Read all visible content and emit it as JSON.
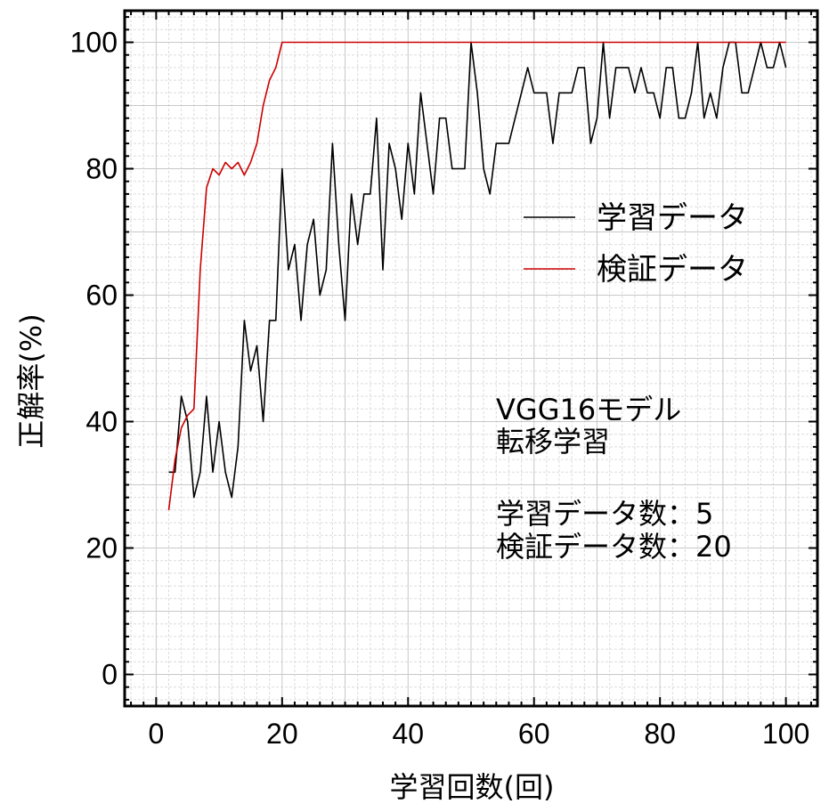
{
  "chart_data": {
    "type": "line",
    "xlabel": "学習回数(回)",
    "ylabel": "正解率(%)",
    "xlim": [
      -5,
      105
    ],
    "ylim": [
      -5,
      105
    ],
    "x_ticks": [
      0,
      20,
      40,
      60,
      80,
      100
    ],
    "y_ticks": [
      0,
      20,
      40,
      60,
      80,
      100
    ],
    "grid": true,
    "legend_position": "upper-right",
    "series": [
      {
        "name": "学習データ",
        "color": "#000000",
        "x": [
          2,
          3,
          4,
          5,
          6,
          7,
          8,
          9,
          10,
          11,
          12,
          13,
          14,
          15,
          16,
          17,
          18,
          19,
          20,
          21,
          22,
          23,
          24,
          25,
          26,
          27,
          28,
          29,
          30,
          31,
          32,
          33,
          34,
          35,
          36,
          37,
          38,
          39,
          40,
          41,
          42,
          43,
          44,
          45,
          46,
          47,
          48,
          49,
          50,
          51,
          52,
          53,
          54,
          55,
          56,
          57,
          58,
          59,
          60,
          61,
          62,
          63,
          64,
          65,
          66,
          67,
          68,
          69,
          70,
          71,
          72,
          73,
          74,
          75,
          76,
          77,
          78,
          79,
          80,
          81,
          82,
          83,
          84,
          85,
          86,
          87,
          88,
          89,
          90,
          91,
          92,
          93,
          94,
          95,
          96,
          97,
          98,
          99,
          100
        ],
        "values": [
          32,
          32,
          44,
          40,
          28,
          32,
          44,
          32,
          40,
          32,
          28,
          36,
          56,
          48,
          52,
          40,
          56,
          56,
          80,
          64,
          68,
          56,
          68,
          72,
          60,
          64,
          84,
          68,
          56,
          76,
          68,
          76,
          76,
          88,
          64,
          84,
          80,
          72,
          84,
          76,
          92,
          84,
          76,
          88,
          88,
          80,
          80,
          80,
          100,
          92,
          80,
          76,
          84,
          84,
          84,
          88,
          92,
          96,
          92,
          92,
          92,
          84,
          92,
          92,
          92,
          96,
          96,
          84,
          88,
          100,
          88,
          96,
          96,
          96,
          92,
          96,
          92,
          92,
          88,
          96,
          96,
          88,
          88,
          92,
          100,
          88,
          92,
          88,
          96,
          100,
          100,
          92,
          92,
          96,
          100,
          96,
          96,
          100,
          96
        ]
      },
      {
        "name": "検証データ",
        "color": "#cc0000",
        "x": [
          2,
          3,
          4,
          5,
          6,
          7,
          8,
          9,
          10,
          11,
          12,
          13,
          14,
          15,
          16,
          17,
          18,
          19,
          20,
          21,
          22,
          23,
          24,
          25,
          26,
          27,
          28,
          29,
          30,
          31,
          32,
          33,
          34,
          35,
          36,
          37,
          38,
          39,
          40,
          41,
          42,
          43,
          44,
          45,
          46,
          47,
          48,
          49,
          50,
          51,
          52,
          53,
          54,
          55,
          56,
          57,
          58,
          59,
          60,
          61,
          62,
          63,
          64,
          65,
          66,
          67,
          68,
          69,
          70,
          71,
          72,
          73,
          74,
          75,
          76,
          77,
          78,
          79,
          80,
          81,
          82,
          83,
          84,
          85,
          86,
          87,
          88,
          89,
          90,
          91,
          92,
          93,
          94,
          95,
          96,
          97,
          98,
          99,
          100
        ],
        "values": [
          26,
          34,
          39,
          41,
          42,
          64,
          77,
          80,
          79,
          81,
          80,
          81,
          79,
          81,
          84,
          90,
          94,
          96,
          100,
          100,
          100,
          100,
          100,
          100,
          100,
          100,
          100,
          100,
          100,
          100,
          100,
          100,
          100,
          100,
          100,
          100,
          100,
          100,
          100,
          100,
          100,
          100,
          100,
          100,
          100,
          100,
          100,
          100,
          100,
          100,
          100,
          100,
          100,
          100,
          100,
          100,
          100,
          100,
          100,
          100,
          100,
          100,
          100,
          100,
          100,
          100,
          100,
          100,
          100,
          100,
          100,
          100,
          100,
          100,
          100,
          100,
          100,
          100,
          100,
          100,
          100,
          100,
          100,
          100,
          100,
          100,
          100,
          100,
          100,
          100,
          100,
          100,
          100,
          100,
          100,
          100,
          100,
          100,
          100
        ]
      }
    ],
    "annotation": {
      "lines": [
        "VGG16モデル",
        "転移学習",
        "",
        "学習データ数：5",
        "検証データ数：20"
      ]
    }
  }
}
